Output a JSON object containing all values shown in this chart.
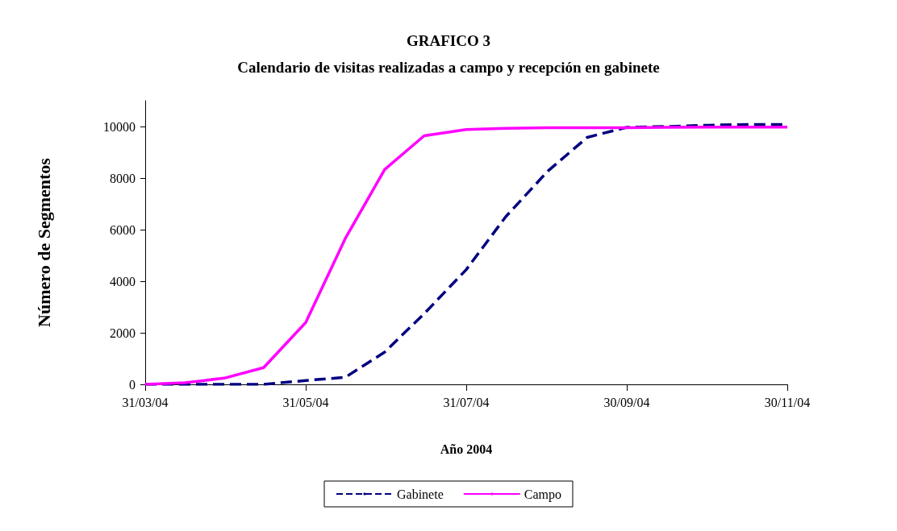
{
  "chart_data": {
    "type": "line",
    "title": "GRAFICO 3",
    "subtitle": "Calendario de visitas realizadas a campo y recepción en gabinete",
    "xlabel": "Año 2004",
    "ylabel": "Número de Segmentos",
    "x": [
      "2004-03-31",
      "2004-04-15",
      "2004-04-30",
      "2004-05-15",
      "2004-05-31",
      "2004-06-15",
      "2004-06-30",
      "2004-07-15",
      "2004-07-31",
      "2004-08-15",
      "2004-08-31",
      "2004-09-15",
      "2004-09-30",
      "2004-10-15",
      "2004-10-31",
      "2004-11-15",
      "2004-11-30"
    ],
    "series": [
      {
        "name": "Gabinete",
        "color": "#000080",
        "line_style": "dashed",
        "values": [
          0,
          0,
          0,
          0,
          150,
          270,
          1250,
          2740,
          4450,
          6500,
          8270,
          9580,
          9970,
          10000,
          10050,
          10080,
          10080
        ]
      },
      {
        "name": "Campo",
        "color": "#ff00ff",
        "line_style": "solid",
        "values": [
          0,
          60,
          240,
          650,
          2400,
          5650,
          8330,
          9640,
          9880,
          9930,
          9950,
          9950,
          9950,
          9970,
          9980,
          9980,
          9980
        ]
      }
    ],
    "xlim": [
      "2004-03-31",
      "2004-11-30"
    ],
    "xticks": [
      {
        "value": "2004-03-31",
        "label": "31/03/04"
      },
      {
        "value": "2004-05-31",
        "label": "31/05/04"
      },
      {
        "value": "2004-07-31",
        "label": "31/07/04"
      },
      {
        "value": "2004-09-30",
        "label": "30/09/04"
      },
      {
        "value": "2004-11-30",
        "label": "30/11/04"
      }
    ],
    "ylim": [
      0,
      11000
    ],
    "yticks": [
      0,
      2000,
      4000,
      6000,
      8000,
      10000
    ],
    "grid": false,
    "legend": "bottom",
    "marker": "none"
  }
}
